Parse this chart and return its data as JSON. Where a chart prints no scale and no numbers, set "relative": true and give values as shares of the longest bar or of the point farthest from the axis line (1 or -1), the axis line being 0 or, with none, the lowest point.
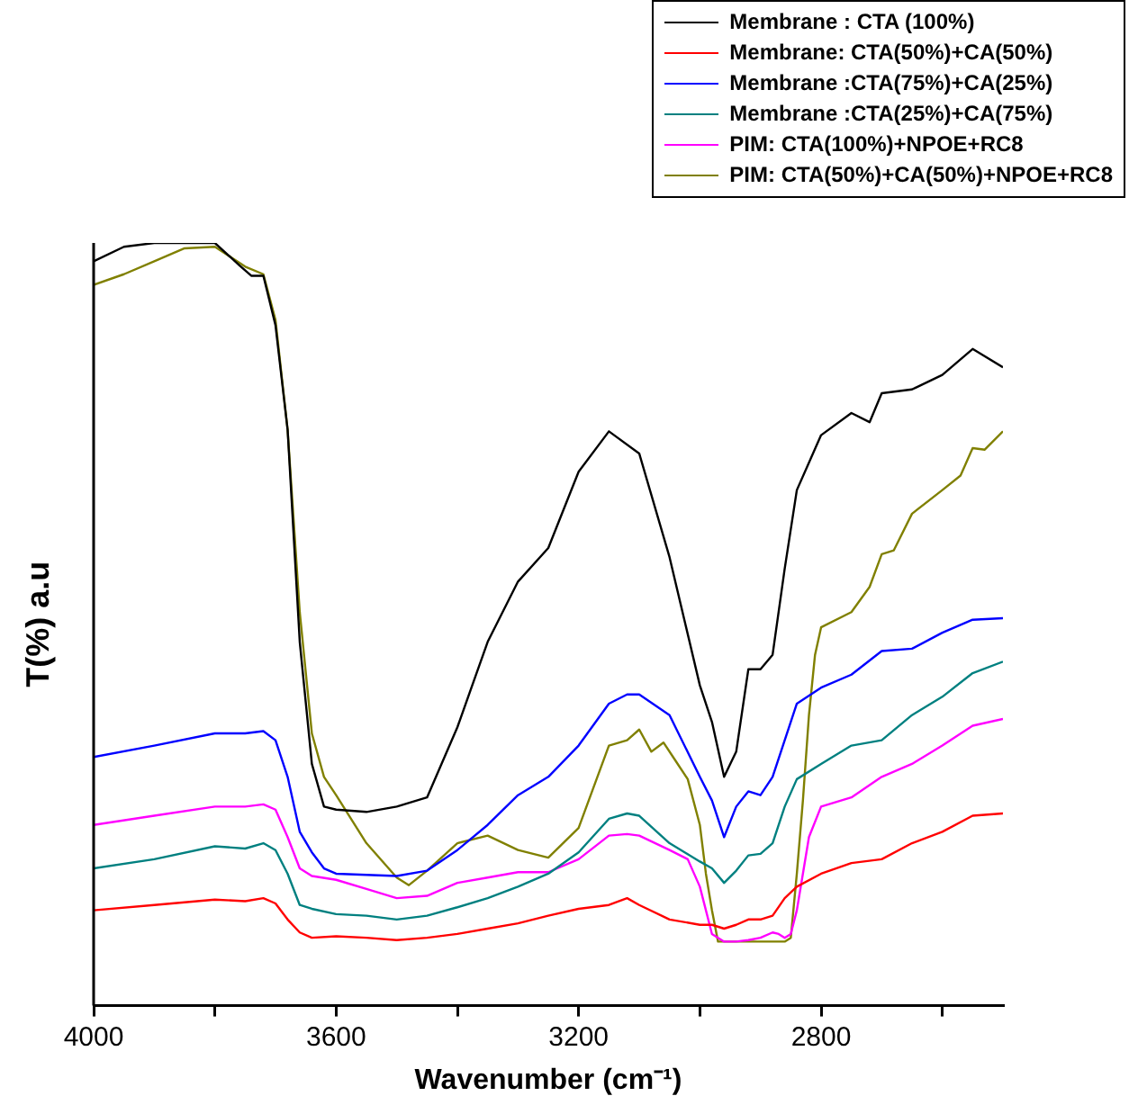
{
  "chart_data": {
    "type": "line",
    "xlabel": "Wavenumber (cm⁻¹)",
    "ylabel": "T(%) a.u",
    "relative": true,
    "legend": "top right",
    "grid": false,
    "marker": "none",
    "line_style": "solid",
    "xlim": [
      4000,
      2500
    ],
    "xticks": [
      4000,
      {
        "value": 3800,
        "label": null
      },
      3600,
      {
        "value": 3400,
        "label": null
      },
      3200,
      {
        "value": 3000,
        "label": null
      },
      2800,
      {
        "value": 2600,
        "label": null
      }
    ],
    "series": [
      {
        "name": "Membrane : CTA (100%)",
        "color": "#000000",
        "x": [
          4000,
          3950,
          3900,
          3800,
          3760,
          3740,
          3720,
          3700,
          3680,
          3660,
          3640,
          3620,
          3600,
          3550,
          3500,
          3450,
          3400,
          3350,
          3300,
          3250,
          3200,
          3150,
          3100,
          3050,
          3000,
          2980,
          2960,
          2940,
          2920,
          2900,
          2880,
          2860,
          2840,
          2800,
          2750,
          2720,
          2700,
          2650,
          2600,
          2550,
          2500
        ],
        "values": [
          0.976,
          0.995,
          1,
          1,
          0.971,
          0.957,
          0.957,
          0.892,
          0.755,
          0.477,
          0.317,
          0.261,
          0.257,
          0.254,
          0.261,
          0.273,
          0.365,
          0.477,
          0.556,
          0.6,
          0.7,
          0.753,
          0.724,
          0.588,
          0.42,
          0.372,
          0.3,
          0.333,
          0.441,
          0.441,
          0.46,
          0.573,
          0.676,
          0.748,
          0.777,
          0.765,
          0.803,
          0.808,
          0.827,
          0.861,
          0.837
        ]
      },
      {
        "name": "Membrane: CTA(50%)+CA(50%)",
        "color": "#ff0000",
        "x": [
          4000,
          3900,
          3800,
          3750,
          3720,
          3700,
          3680,
          3660,
          3640,
          3600,
          3550,
          3500,
          3450,
          3400,
          3350,
          3300,
          3250,
          3200,
          3150,
          3120,
          3100,
          3050,
          3000,
          2980,
          2960,
          2940,
          2920,
          2900,
          2880,
          2860,
          2840,
          2800,
          2750,
          2700,
          2650,
          2600,
          2550,
          2500
        ],
        "values": [
          0.125,
          0.132,
          0.139,
          0.137,
          0.141,
          0.134,
          0.113,
          0.096,
          0.089,
          0.091,
          0.089,
          0.086,
          0.089,
          0.094,
          0.101,
          0.108,
          0.118,
          0.127,
          0.132,
          0.141,
          0.132,
          0.113,
          0.106,
          0.106,
          0.101,
          0.106,
          0.113,
          0.113,
          0.118,
          0.141,
          0.156,
          0.173,
          0.187,
          0.192,
          0.213,
          0.228,
          0.249,
          0.252
        ]
      },
      {
        "name": "Membrane :CTA(75%)+CA(25%)",
        "color": "#0000ff",
        "x": [
          4000,
          3900,
          3800,
          3750,
          3720,
          3700,
          3680,
          3660,
          3640,
          3620,
          3600,
          3500,
          3450,
          3400,
          3350,
          3300,
          3250,
          3200,
          3150,
          3120,
          3100,
          3050,
          3000,
          2980,
          2960,
          2940,
          2920,
          2900,
          2880,
          2860,
          2840,
          2800,
          2750,
          2700,
          2650,
          2600,
          2550,
          2500
        ],
        "values": [
          0.326,
          0.341,
          0.357,
          0.357,
          0.36,
          0.348,
          0.3,
          0.228,
          0.201,
          0.18,
          0.173,
          0.17,
          0.177,
          0.204,
          0.237,
          0.276,
          0.3,
          0.341,
          0.396,
          0.408,
          0.408,
          0.381,
          0.3,
          0.269,
          0.221,
          0.261,
          0.281,
          0.276,
          0.3,
          0.348,
          0.396,
          0.417,
          0.434,
          0.465,
          0.468,
          0.489,
          0.506,
          0.508
        ]
      },
      {
        "name": "Membrane :CTA(25%)+CA(75%)",
        "color": "#008080",
        "x": [
          4000,
          3900,
          3800,
          3750,
          3720,
          3700,
          3680,
          3660,
          3640,
          3600,
          3550,
          3500,
          3450,
          3400,
          3350,
          3300,
          3250,
          3200,
          3150,
          3120,
          3100,
          3050,
          3000,
          2980,
          2960,
          2940,
          2920,
          2900,
          2880,
          2860,
          2840,
          2800,
          2750,
          2700,
          2650,
          2600,
          2550,
          2500
        ],
        "values": [
          0.18,
          0.192,
          0.209,
          0.206,
          0.213,
          0.204,
          0.173,
          0.132,
          0.127,
          0.12,
          0.118,
          0.113,
          0.118,
          0.129,
          0.141,
          0.156,
          0.173,
          0.201,
          0.245,
          0.252,
          0.249,
          0.213,
          0.189,
          0.18,
          0.161,
          0.177,
          0.197,
          0.199,
          0.213,
          0.261,
          0.297,
          0.317,
          0.341,
          0.348,
          0.381,
          0.405,
          0.436,
          0.451
        ]
      },
      {
        "name": "PIM: CTA(100%)+NPOE+RC8",
        "color": "#ff00ff",
        "x": [
          4000,
          3900,
          3800,
          3750,
          3720,
          3700,
          3680,
          3660,
          3640,
          3600,
          3550,
          3500,
          3450,
          3400,
          3350,
          3300,
          3250,
          3200,
          3150,
          3120,
          3100,
          3050,
          3020,
          3000,
          2990,
          2980,
          2960,
          2940,
          2920,
          2900,
          2880,
          2870,
          2860,
          2850,
          2840,
          2830,
          2820,
          2800,
          2750,
          2700,
          2650,
          2600,
          2550,
          2500
        ],
        "values": [
          0.237,
          0.249,
          0.261,
          0.261,
          0.264,
          0.257,
          0.221,
          0.18,
          0.17,
          0.165,
          0.153,
          0.141,
          0.144,
          0.161,
          0.168,
          0.175,
          0.175,
          0.192,
          0.223,
          0.225,
          0.223,
          0.204,
          0.192,
          0.156,
          0.125,
          0.094,
          0.084,
          0.084,
          0.086,
          0.089,
          0.096,
          0.094,
          0.089,
          0.094,
          0.125,
          0.173,
          0.221,
          0.261,
          0.273,
          0.3,
          0.317,
          0.341,
          0.367,
          0.376
        ]
      },
      {
        "name": "PIM: CTA(50%)+CA(50%)+NPOE+RC8",
        "color": "#808000",
        "x": [
          4000,
          3950,
          3900,
          3850,
          3800,
          3750,
          3720,
          3700,
          3680,
          3660,
          3640,
          3620,
          3600,
          3550,
          3500,
          3480,
          3450,
          3400,
          3350,
          3300,
          3250,
          3200,
          3150,
          3120,
          3100,
          3080,
          3060,
          3040,
          3020,
          3000,
          2990,
          2980,
          2970,
          2900,
          2860,
          2850,
          2840,
          2830,
          2820,
          2810,
          2800,
          2750,
          2720,
          2700,
          2680,
          2650,
          2600,
          2570,
          2550,
          2530,
          2500
        ],
        "values": [
          0.945,
          0.959,
          0.976,
          0.993,
          0.995,
          0.969,
          0.959,
          0.899,
          0.755,
          0.516,
          0.357,
          0.3,
          0.276,
          0.213,
          0.168,
          0.158,
          0.177,
          0.213,
          0.223,
          0.204,
          0.194,
          0.233,
          0.341,
          0.348,
          0.362,
          0.333,
          0.345,
          0.321,
          0.297,
          0.237,
          0.173,
          0.125,
          0.084,
          0.084,
          0.084,
          0.089,
          0.173,
          0.269,
          0.381,
          0.46,
          0.496,
          0.516,
          0.549,
          0.592,
          0.597,
          0.645,
          0.676,
          0.695,
          0.731,
          0.729,
          0.753
        ]
      }
    ]
  }
}
